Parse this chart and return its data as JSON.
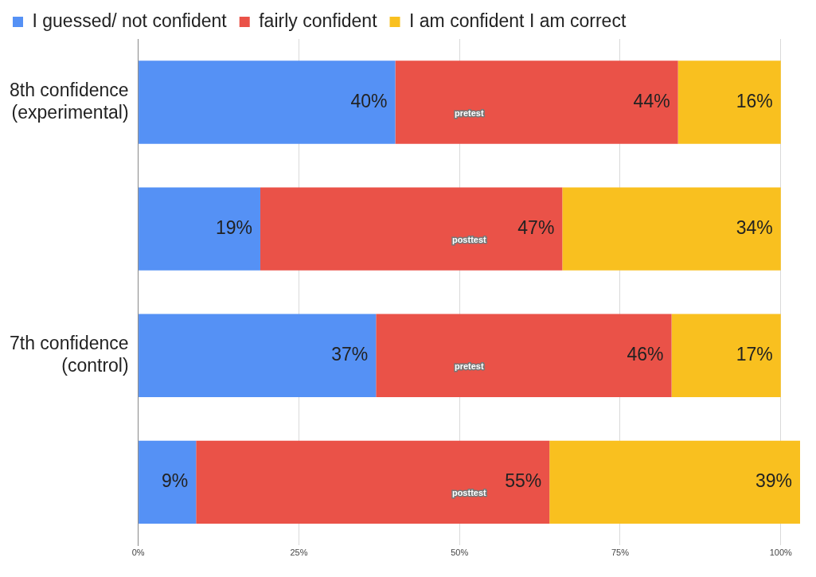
{
  "chart_data": {
    "type": "bar",
    "orientation": "horizontal",
    "stacked": true,
    "categories": [
      "8th confidence (experimental)",
      null,
      "7th confidence (control)",
      null
    ],
    "series": [
      {
        "name": "I guessed/ not confident",
        "color": "#5591f5",
        "values": [
          40,
          19,
          37,
          9
        ],
        "value_labels": [
          "40%",
          "19%",
          "37%",
          "9%"
        ]
      },
      {
        "name": "fairly confident",
        "color": "#ea5248",
        "values": [
          44,
          47,
          46,
          55
        ],
        "value_labels": [
          "44%",
          "47%",
          "46%",
          "55%"
        ]
      },
      {
        "name": "I am confident I am correct",
        "color": "#f9c01f",
        "values": [
          16,
          34,
          17,
          39
        ],
        "value_labels": [
          "16%",
          "34%",
          "17%",
          "39%"
        ]
      }
    ],
    "xlim": [
      0,
      103
    ],
    "xticks": [
      {
        "value": 0,
        "label": "0%"
      },
      {
        "value": 25,
        "label": "25%"
      },
      {
        "value": 50,
        "label": "50%"
      },
      {
        "value": 75,
        "label": "75%"
      },
      {
        "value": 100,
        "label": "100%"
      }
    ],
    "grid": "x",
    "legend": "top",
    "annotations": [
      "pretest",
      "posttest",
      "pretest",
      "posttest"
    ]
  }
}
